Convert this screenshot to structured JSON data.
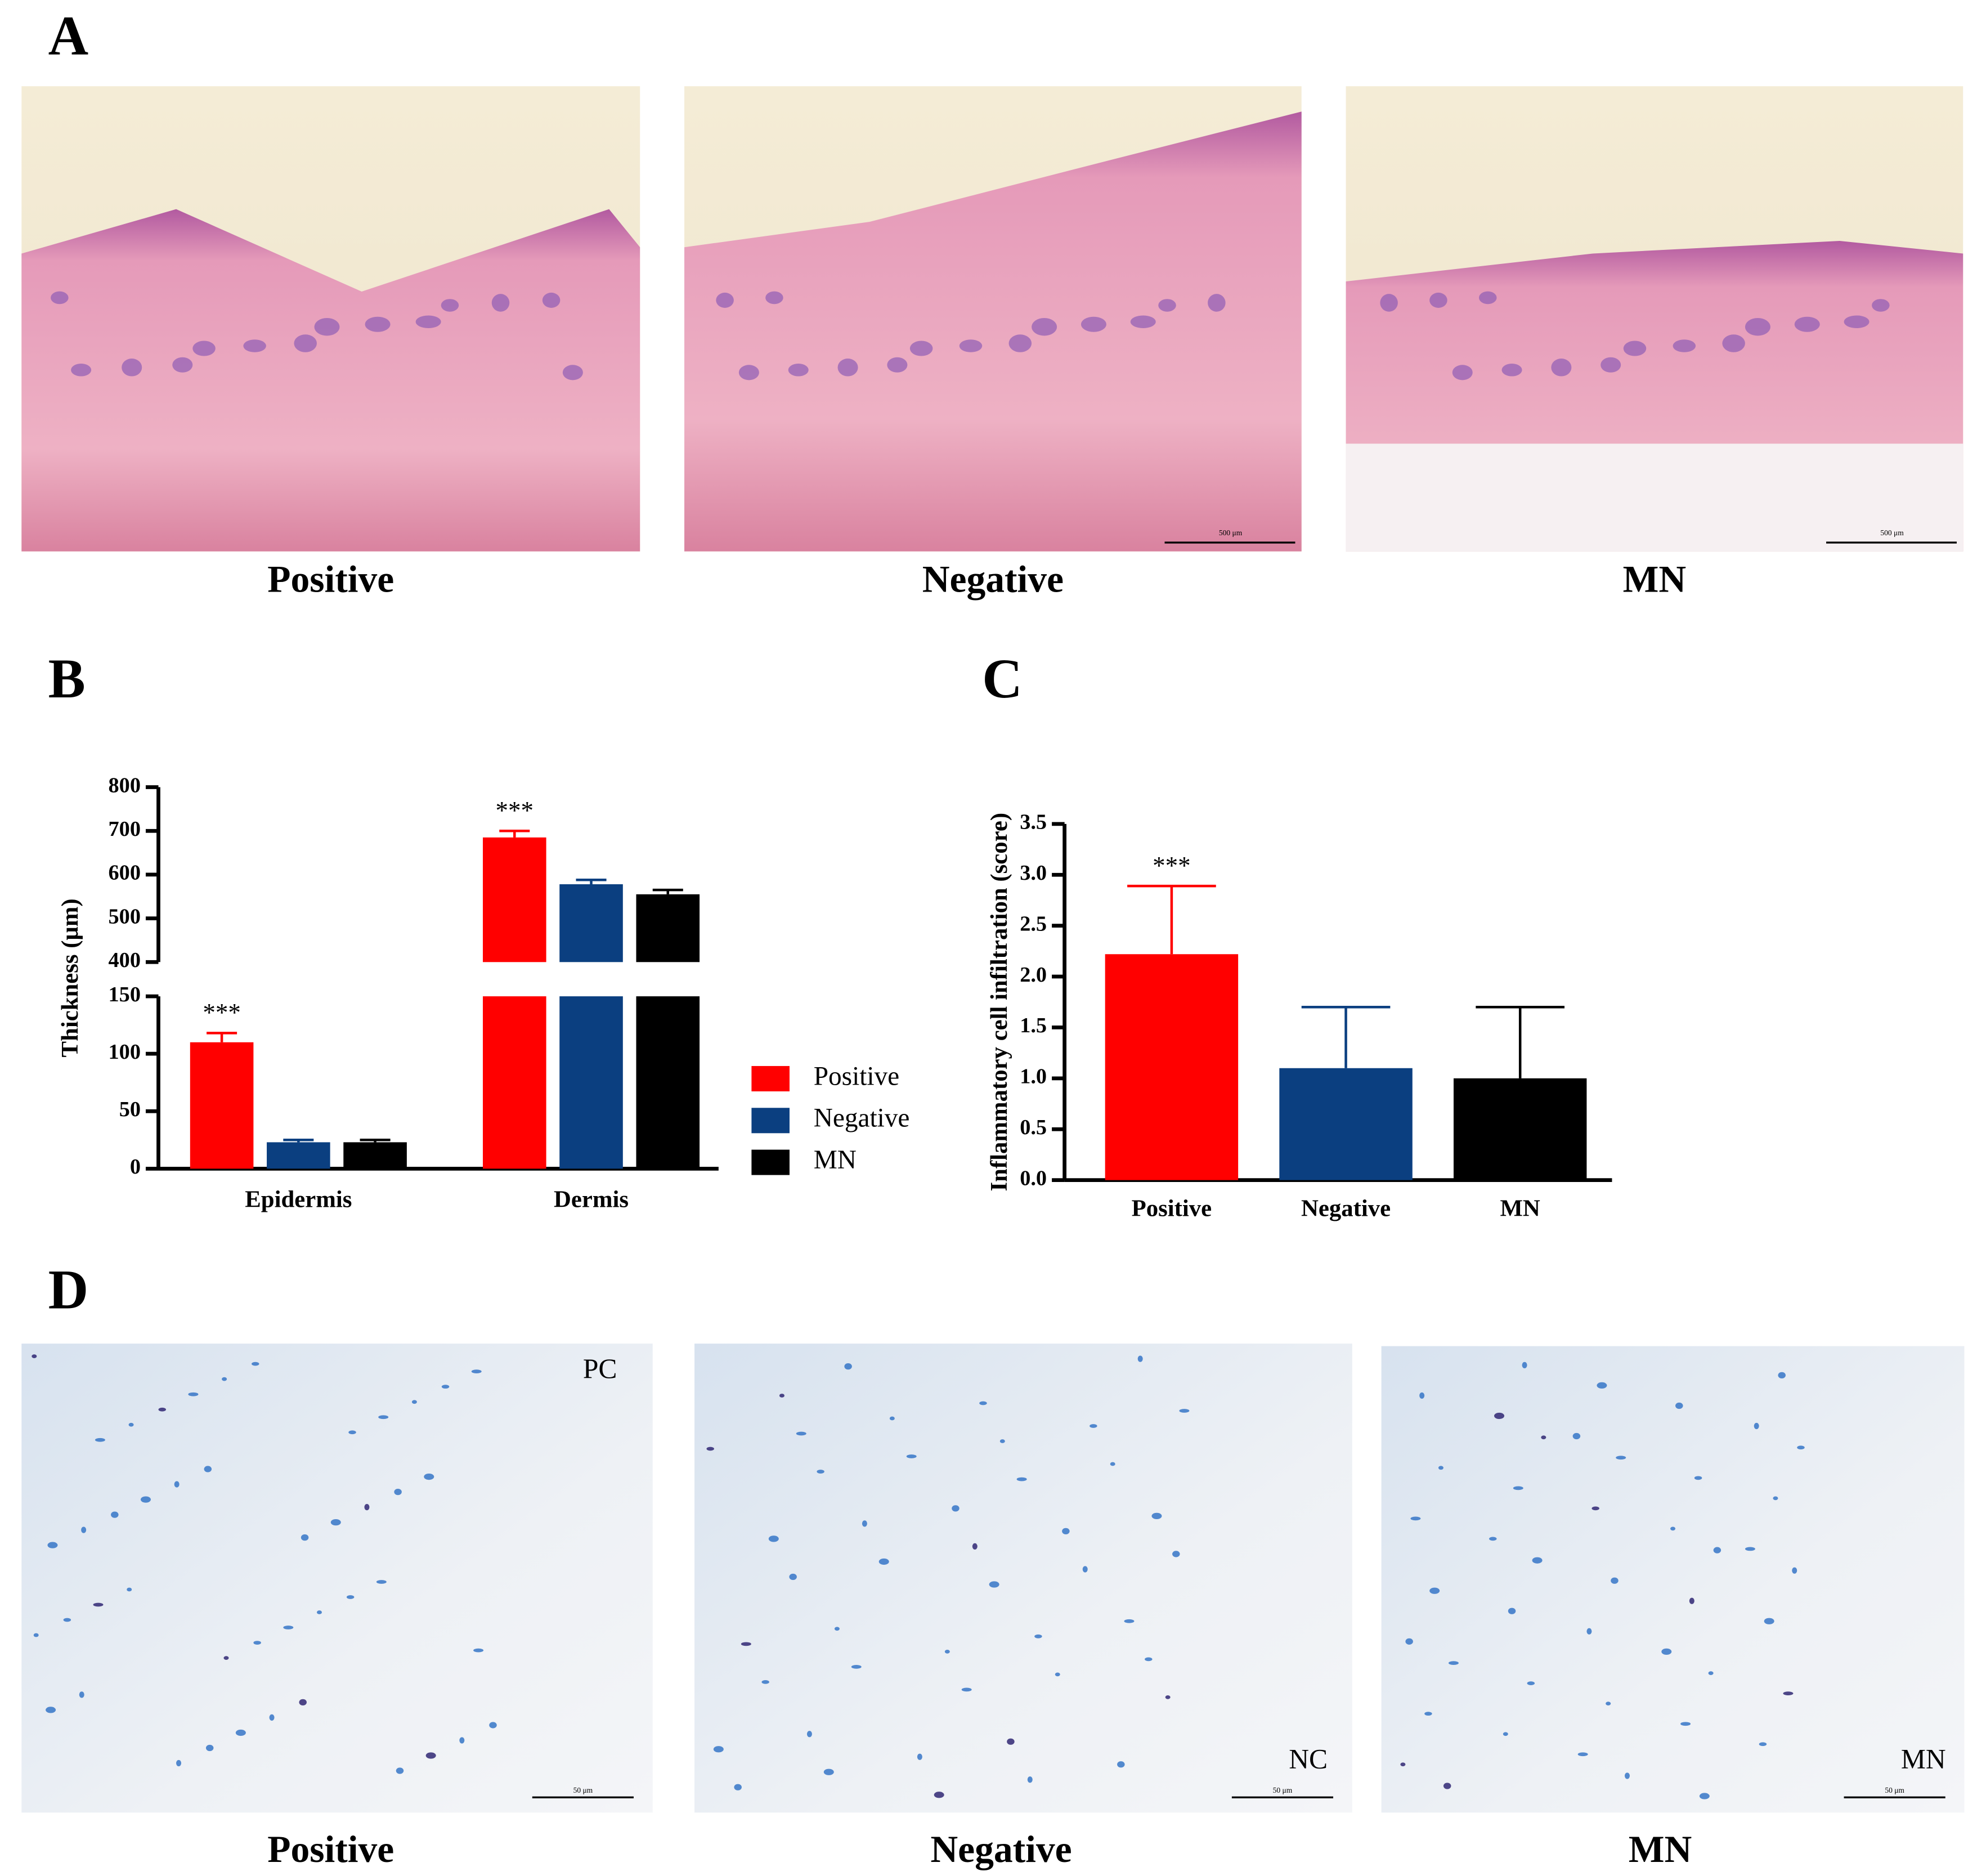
{
  "panel_labels": [
    "A",
    "B",
    "C",
    "D"
  ],
  "panel_a": {
    "images": [
      {
        "caption": "Positive"
      },
      {
        "caption": "Negative",
        "scale_bar": "500 μm"
      },
      {
        "caption": "MN",
        "scale_bar": "500 μm"
      }
    ]
  },
  "panel_d": {
    "images": [
      {
        "caption": "Positive",
        "tag": "PC",
        "scale_bar": "50 μm"
      },
      {
        "caption": "Negative",
        "tag": "NC",
        "scale_bar": "50 μm"
      },
      {
        "caption": "MN",
        "tag": "MN",
        "scale_bar": "50 μm"
      }
    ]
  },
  "chart_data": [
    {
      "type": "bar",
      "ylabel": "Thickness (μm)",
      "categories": [
        "Epidermis",
        "Dermis"
      ],
      "series": [
        {
          "name": "Positive",
          "color": "#ff0000",
          "values": [
            110,
            685
          ],
          "errors": [
            8,
            15
          ]
        },
        {
          "name": "Negative",
          "color": "#0b3f80",
          "values": [
            23,
            578
          ],
          "errors": [
            2,
            10
          ]
        },
        {
          "name": "MN",
          "color": "#000000",
          "values": [
            23,
            555
          ],
          "errors": [
            2,
            10
          ]
        }
      ],
      "annotations": [
        {
          "text": "***",
          "series": 0,
          "index": 0
        },
        {
          "text": "***",
          "series": 0,
          "index": 1
        }
      ],
      "ylim": [
        0,
        800
      ],
      "ybreak": [
        150,
        400
      ],
      "yticks": [
        0,
        50,
        100,
        150,
        400,
        500,
        600,
        700,
        800
      ],
      "legend": "right"
    },
    {
      "type": "bar",
      "ylabel": "Inflammatory cell infiltration (score)",
      "categories": [
        "Positive",
        "Negative",
        "MN"
      ],
      "values": [
        2.22,
        1.1,
        1.0
      ],
      "errors": [
        0.67,
        0.6,
        0.7
      ],
      "colors": [
        "#ff0000",
        "#0b3f80",
        "#000000"
      ],
      "annotations": [
        {
          "text": "***",
          "index": 0
        }
      ],
      "ylim": [
        0,
        3.5
      ],
      "yticks": [
        {
          "value": 0,
          "label": "0.0"
        },
        0.5,
        {
          "value": 1,
          "label": "1.0"
        },
        1.5,
        {
          "value": 2,
          "label": "2.0"
        },
        2.5,
        {
          "value": 3,
          "label": "3.0"
        },
        3.5
      ]
    }
  ]
}
